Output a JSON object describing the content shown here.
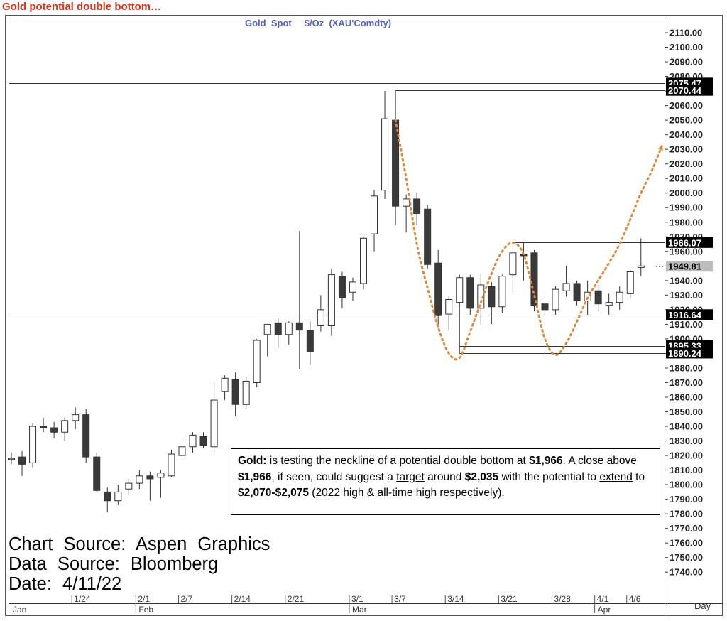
{
  "page_title": "Gold potential double bottom…",
  "chart_data": {
    "type": "candlestick",
    "title": "Gold  Spot     $/Oz  (XAU'Comdty)",
    "ylim": [
      1730,
      2115
    ],
    "y_ticks": [
      1740,
      1750,
      1760,
      1770,
      1780,
      1790,
      1800,
      1810,
      1820,
      1830,
      1840,
      1850,
      1860,
      1870,
      1880,
      1890,
      1900,
      1910,
      1920,
      1930,
      1940,
      1950,
      1960,
      1970,
      1980,
      1990,
      2000,
      2010,
      2020,
      2030,
      2040,
      2050,
      2060,
      2070,
      2080,
      2090,
      2100,
      2110
    ],
    "y_tick_labels": [
      "1740.00",
      "1750.00",
      "1760.00",
      "1770.00",
      "1780.00",
      "1790.00",
      "1800.00",
      "1810.00",
      "1820.00",
      "1830.00",
      "1840.00",
      "1850.00",
      "1860.00",
      "1870.00",
      "1880.00",
      "1890.00",
      "1900.00",
      "1910.00",
      "1920.00",
      "1930.00",
      "1940.00",
      "1950.00",
      "1960.00",
      "1970.00",
      "1980.00",
      "1990.00",
      "2000.00",
      "2010.00",
      "2020.00",
      "2030.00",
      "2040.00",
      "2050.00",
      "2060.00",
      "2070.00",
      "2080.00",
      "2090.00",
      "2100.00",
      "2110.00"
    ],
    "x_axis_unit": "Day",
    "x_week_labels": [
      {
        "label": "1/24",
        "index": 6
      },
      {
        "label": "2/1",
        "index": 12
      },
      {
        "label": "2/7",
        "index": 16
      },
      {
        "label": "2/14",
        "index": 21
      },
      {
        "label": "2/21",
        "index": 26
      },
      {
        "label": "3/1",
        "index": 32
      },
      {
        "label": "3/7",
        "index": 36
      },
      {
        "label": "3/14",
        "index": 41
      },
      {
        "label": "3/21",
        "index": 46
      },
      {
        "label": "3/28",
        "index": 51
      },
      {
        "label": "4/1",
        "index": 55
      },
      {
        "label": "4/6",
        "index": 58
      }
    ],
    "x_month_labels": [
      {
        "label": "Jan",
        "index": 0
      },
      {
        "label": "Feb",
        "index": 12
      },
      {
        "label": "Mar",
        "index": 32
      },
      {
        "label": "Apr",
        "index": 55
      }
    ],
    "candles": [
      {
        "o": 1818,
        "h": 1822,
        "l": 1814,
        "c": 1818
      },
      {
        "o": 1819,
        "h": 1823,
        "l": 1806,
        "c": 1814
      },
      {
        "o": 1815,
        "h": 1842,
        "l": 1812,
        "c": 1840
      },
      {
        "o": 1840,
        "h": 1846,
        "l": 1836,
        "c": 1839
      },
      {
        "o": 1839,
        "h": 1843,
        "l": 1832,
        "c": 1836
      },
      {
        "o": 1836,
        "h": 1846,
        "l": 1830,
        "c": 1844
      },
      {
        "o": 1844,
        "h": 1853,
        "l": 1838,
        "c": 1848
      },
      {
        "o": 1848,
        "h": 1852,
        "l": 1815,
        "c": 1819
      },
      {
        "o": 1819,
        "h": 1822,
        "l": 1795,
        "c": 1796
      },
      {
        "o": 1795,
        "h": 1798,
        "l": 1781,
        "c": 1789
      },
      {
        "o": 1789,
        "h": 1800,
        "l": 1786,
        "c": 1795
      },
      {
        "o": 1797,
        "h": 1804,
        "l": 1793,
        "c": 1801
      },
      {
        "o": 1801,
        "h": 1810,
        "l": 1797,
        "c": 1806
      },
      {
        "o": 1806,
        "h": 1809,
        "l": 1789,
        "c": 1804
      },
      {
        "o": 1805,
        "h": 1810,
        "l": 1791,
        "c": 1808
      },
      {
        "o": 1806,
        "h": 1824,
        "l": 1805,
        "c": 1821
      },
      {
        "o": 1820,
        "h": 1830,
        "l": 1817,
        "c": 1826
      },
      {
        "o": 1826,
        "h": 1836,
        "l": 1822,
        "c": 1834
      },
      {
        "o": 1833,
        "h": 1836,
        "l": 1825,
        "c": 1827
      },
      {
        "o": 1826,
        "h": 1870,
        "l": 1822,
        "c": 1858
      },
      {
        "o": 1864,
        "h": 1875,
        "l": 1858,
        "c": 1873
      },
      {
        "o": 1872,
        "h": 1877,
        "l": 1847,
        "c": 1855
      },
      {
        "o": 1855,
        "h": 1874,
        "l": 1852,
        "c": 1871
      },
      {
        "o": 1870,
        "h": 1900,
        "l": 1867,
        "c": 1899
      },
      {
        "o": 1903,
        "h": 1910,
        "l": 1888,
        "c": 1910
      },
      {
        "o": 1911,
        "h": 1914,
        "l": 1894,
        "c": 1903
      },
      {
        "o": 1903,
        "h": 1912,
        "l": 1896,
        "c": 1911
      },
      {
        "o": 1911,
        "h": 1974,
        "l": 1879,
        "c": 1906
      },
      {
        "o": 1906,
        "h": 1912,
        "l": 1882,
        "c": 1891
      },
      {
        "o": 1909,
        "h": 1930,
        "l": 1905,
        "c": 1920
      },
      {
        "o": 1909,
        "h": 1948,
        "l": 1902,
        "c": 1944
      },
      {
        "o": 1943,
        "h": 1946,
        "l": 1921,
        "c": 1928
      },
      {
        "o": 1932,
        "h": 1942,
        "l": 1926,
        "c": 1939
      },
      {
        "o": 1938,
        "h": 1970,
        "l": 1934,
        "c": 1969
      },
      {
        "o": 1972,
        "h": 2002,
        "l": 1960,
        "c": 1998
      },
      {
        "o": 2002,
        "h": 2070,
        "l": 1996,
        "c": 2051
      },
      {
        "o": 2050,
        "h": 2059,
        "l": 1978,
        "c": 1991
      },
      {
        "o": 1991,
        "h": 1999,
        "l": 1973,
        "c": 1996
      },
      {
        "o": 1996,
        "h": 2000,
        "l": 1978,
        "c": 1986
      },
      {
        "o": 1989,
        "h": 1992,
        "l": 1948,
        "c": 1951
      },
      {
        "o": 1952,
        "h": 1961,
        "l": 1908,
        "c": 1916
      },
      {
        "o": 1917,
        "h": 1929,
        "l": 1906,
        "c": 1927
      },
      {
        "o": 1925,
        "h": 1944,
        "l": 1916,
        "c": 1942
      },
      {
        "o": 1942,
        "h": 1944,
        "l": 1916,
        "c": 1921
      },
      {
        "o": 1921,
        "h": 1944,
        "l": 1910,
        "c": 1937
      },
      {
        "o": 1936,
        "h": 1939,
        "l": 1910,
        "c": 1922
      },
      {
        "o": 1922,
        "h": 1944,
        "l": 1918,
        "c": 1943
      },
      {
        "o": 1944,
        "h": 1960,
        "l": 1932,
        "c": 1959
      },
      {
        "o": 1958,
        "h": 1966,
        "l": 1940,
        "c": 1957
      },
      {
        "o": 1959,
        "h": 1961,
        "l": 1919,
        "c": 1923
      },
      {
        "o": 1924,
        "h": 1929,
        "l": 1890,
        "c": 1920
      },
      {
        "o": 1920,
        "h": 1936,
        "l": 1916,
        "c": 1934
      },
      {
        "o": 1933,
        "h": 1950,
        "l": 1929,
        "c": 1938
      },
      {
        "o": 1938,
        "h": 1940,
        "l": 1923,
        "c": 1926
      },
      {
        "o": 1926,
        "h": 1940,
        "l": 1916,
        "c": 1932
      },
      {
        "o": 1933,
        "h": 1937,
        "l": 1919,
        "c": 1924
      },
      {
        "o": 1923,
        "h": 1931,
        "l": 1916,
        "c": 1925
      },
      {
        "o": 1925,
        "h": 1936,
        "l": 1920,
        "c": 1932
      },
      {
        "o": 1931,
        "h": 1947,
        "l": 1928,
        "c": 1946
      },
      {
        "o": 1949,
        "h": 1969,
        "l": 1943,
        "c": 1950
      }
    ],
    "levels": [
      {
        "value": 2075.47,
        "label": "2075.47",
        "style": "black"
      },
      {
        "value": 2070.44,
        "label": "2070.44",
        "style": "black"
      },
      {
        "value": 1966.07,
        "label": "1966.07",
        "style": "black"
      },
      {
        "value": 1949.81,
        "label": "1949.81",
        "style": "grey"
      },
      {
        "value": 1916.64,
        "label": "1916.64",
        "style": "black"
      },
      {
        "value": 1895.33,
        "label": "1895.33",
        "style": "black"
      },
      {
        "value": 1890.24,
        "label": "1890.24",
        "style": "black"
      }
    ],
    "projection_path": [
      {
        "i": 36,
        "v": 2050
      },
      {
        "i": 37,
        "v": 2010
      },
      {
        "i": 38,
        "v": 1965
      },
      {
        "i": 39,
        "v": 1935
      },
      {
        "i": 40,
        "v": 1908
      },
      {
        "i": 41,
        "v": 1890
      },
      {
        "i": 42,
        "v": 1887
      },
      {
        "i": 43,
        "v": 1905
      },
      {
        "i": 44,
        "v": 1925
      },
      {
        "i": 45,
        "v": 1945
      },
      {
        "i": 46,
        "v": 1960
      },
      {
        "i": 47,
        "v": 1966
      },
      {
        "i": 48,
        "v": 1958
      },
      {
        "i": 49,
        "v": 1930
      },
      {
        "i": 50,
        "v": 1900
      },
      {
        "i": 51,
        "v": 1889
      },
      {
        "i": 52,
        "v": 1897
      },
      {
        "i": 53,
        "v": 1912
      },
      {
        "i": 54,
        "v": 1928
      },
      {
        "i": 55,
        "v": 1940
      },
      {
        "i": 56,
        "v": 1952
      },
      {
        "i": 57,
        "v": 1965
      },
      {
        "i": 58,
        "v": 1982
      },
      {
        "i": 59,
        "v": 2000
      },
      {
        "i": 60,
        "v": 2015
      },
      {
        "i": 61,
        "v": 2033
      }
    ],
    "projection_color": "#e0873c"
  },
  "annotation": {
    "p1": "Gold:",
    "p2": " is testing the neckline of a potential ",
    "p3": "double bottom",
    "p4": " at ",
    "p5": "$1,966",
    "p6": ". A close above ",
    "p7": "$1,966",
    "p8": ", if seen, could suggest a ",
    "p9": "target",
    "p10": " around ",
    "p11": "$2,035",
    "p12": " with the potential to ",
    "p13": "extend",
    "p14": " to ",
    "p15": "$2,070-$2,075",
    "p16": " (2022 high & all-time high respectively)."
  },
  "source": {
    "line1": "Chart Source: Aspen Graphics",
    "line2": "Data Source: Bloomberg",
    "line3": "Date:   4/11/22"
  }
}
